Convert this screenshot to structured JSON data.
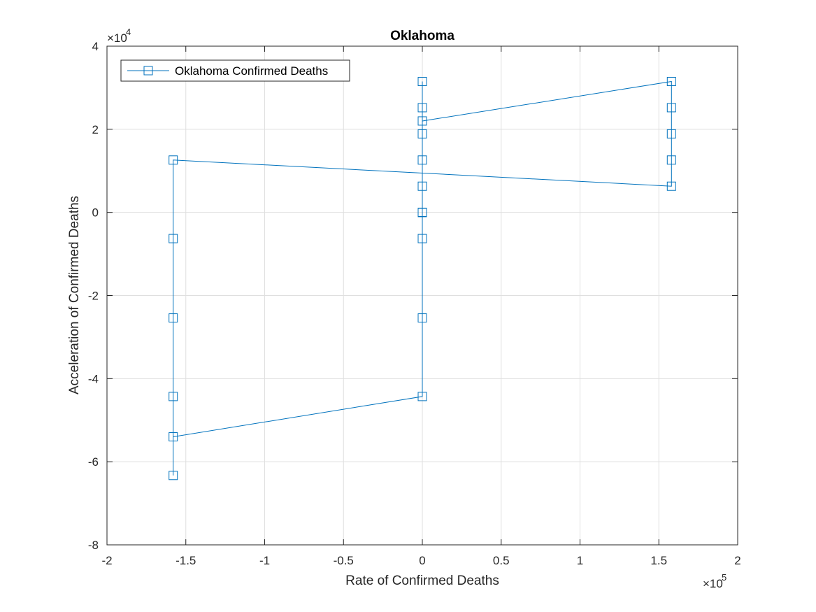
{
  "colors": {
    "background": "#ffffff",
    "axis": "#262626",
    "grid": "#dfdfdf",
    "series": "#0072bd"
  },
  "chart_data": {
    "type": "line",
    "title": "Oklahoma",
    "xlabel": "Rate of Confirmed Deaths",
    "ylabel": "Acceleration of Confirmed Deaths",
    "xlim": [
      -200000,
      200000
    ],
    "ylim": [
      -80000,
      40000
    ],
    "x_ticks": [
      -200000,
      -150000,
      -100000,
      -50000,
      0,
      50000,
      100000,
      150000,
      200000
    ],
    "x_tick_labels": [
      "-2",
      "-1.5",
      "-1",
      "-0.5",
      "0",
      "0.5",
      "1",
      "1.5",
      "2"
    ],
    "y_ticks": [
      -80000,
      -60000,
      -40000,
      -20000,
      0,
      20000,
      40000
    ],
    "y_tick_labels": [
      "-8",
      "-6",
      "-4",
      "-2",
      "0",
      "2",
      "4"
    ],
    "x_exponent": {
      "base": "×10",
      "power": "5"
    },
    "y_exponent": {
      "base": "×10",
      "power": "4"
    },
    "grid": true,
    "legend_position": "top-left",
    "marker": "square",
    "series": [
      {
        "name": "Oklahoma Confirmed Deaths",
        "x": [
          0,
          0,
          0,
          0,
          0,
          0,
          0,
          0,
          0,
          158000,
          158000,
          158000,
          158000,
          158000,
          -158000,
          -158000,
          -158000,
          -158000,
          -158000,
          -158000,
          0,
          0,
          0,
          0
        ],
        "y": [
          0,
          0,
          0,
          6300,
          12600,
          18900,
          25200,
          31500,
          22000,
          31500,
          25200,
          18900,
          12600,
          6300,
          12600,
          -6300,
          -25400,
          -44300,
          -63300,
          -54000,
          -44300,
          -25400,
          -6300,
          0
        ]
      }
    ]
  }
}
